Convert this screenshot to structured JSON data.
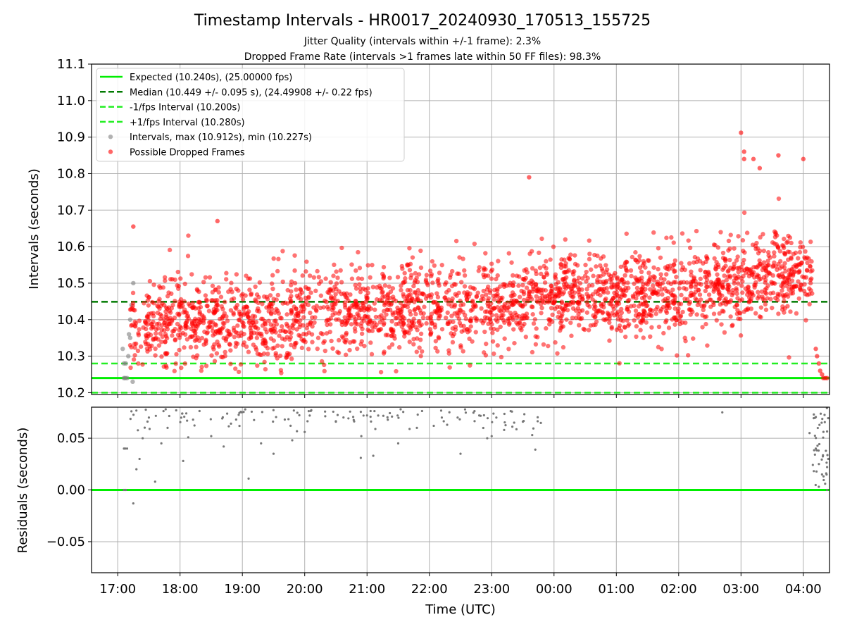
{
  "title": "Timestamp Intervals - HR0017_20240930_170513_155725",
  "subtitle_1": "Jitter Quality (intervals within +/-1 frame): 2.3%",
  "subtitle_2": "Dropped Frame Rate (intervals >1 frames late within 50 FF files): 98.3%",
  "colors": {
    "expected": "#00ee00",
    "median": "#007a00",
    "fps_band": "#22ee22",
    "intervals": "#808080",
    "dropped": "#ff0000",
    "residuals": "#777777"
  },
  "legend": {
    "placement": "upper-left",
    "items": [
      {
        "label": "Expected (10.240s), (25.00000 fps)",
        "style": "solid",
        "color": "#00ee00"
      },
      {
        "label": "Median (10.449 +/- 0.095 s), (24.49908 +/- 0.22 fps)",
        "style": "dashed",
        "color": "#007a00"
      },
      {
        "label": "-1/fps Interval (10.200s)",
        "style": "dashed",
        "color": "#22ee22"
      },
      {
        "label": "+1/fps Interval (10.280s)",
        "style": "dashed",
        "color": "#22ee22"
      },
      {
        "label": "Intervals, max (10.912s), min (10.227s)",
        "style": "dot",
        "color": "#808080"
      },
      {
        "label": "Possible Dropped Frames",
        "style": "dot",
        "color": "#ff0000"
      }
    ]
  },
  "chart_data": [
    {
      "type": "scatter",
      "title": "Timestamp Intervals - HR0017_20240930_170513_155725",
      "xlabel": "",
      "ylabel": "Intervals (seconds)",
      "xlim_hours": [
        16.58,
        28.42
      ],
      "ylim": [
        10.195,
        11.1
      ],
      "yticks": [
        "10.2",
        "10.3",
        "10.4",
        "10.5",
        "10.6",
        "10.7",
        "10.8",
        "10.9",
        "11.0",
        "11.1"
      ],
      "grid": true,
      "reference_lines": [
        {
          "name": "Expected",
          "y": 10.24,
          "style": "solid"
        },
        {
          "name": "Median",
          "y": 10.449,
          "style": "dashed"
        },
        {
          "name": "-1/fps Interval",
          "y": 10.2,
          "style": "dashed"
        },
        {
          "name": "+1/fps Interval",
          "y": 10.28,
          "style": "dashed"
        }
      ],
      "series": [
        {
          "name": "Intervals, max (10.912s), min (10.227s)",
          "points": [
            [
              17.1,
              10.24
            ],
            [
              17.12,
              10.24
            ],
            [
              17.15,
              10.24
            ],
            [
              17.08,
              10.32
            ],
            [
              17.1,
              10.28
            ],
            [
              17.13,
              10.28
            ],
            [
              17.18,
              10.36
            ],
            [
              17.2,
              10.4
            ],
            [
              17.22,
              10.44
            ],
            [
              17.24,
              10.23
            ],
            [
              17.25,
              10.5
            ],
            [
              17.17,
              10.3
            ],
            [
              17.2,
              10.35
            ]
          ]
        },
        {
          "name": "Possible Dropped Frames",
          "trend": [
            [
              17.2,
              10.37
            ],
            [
              18.0,
              10.4
            ],
            [
              19.0,
              10.39
            ],
            [
              20.0,
              10.41
            ],
            [
              21.0,
              10.43
            ],
            [
              22.0,
              10.43
            ],
            [
              23.0,
              10.44
            ],
            [
              24.0,
              10.47
            ],
            [
              25.0,
              10.46
            ],
            [
              26.0,
              10.47
            ],
            [
              27.0,
              10.51
            ],
            [
              28.0,
              10.53
            ]
          ],
          "notable": [
            [
              17.25,
              10.655
            ],
            [
              18.6,
              10.67
            ],
            [
              23.6,
              10.79
            ],
            [
              27.0,
              10.912
            ],
            [
              27.6,
              10.85
            ],
            [
              28.0,
              10.84
            ],
            [
              27.2,
              10.84
            ],
            [
              27.05,
              10.84
            ],
            [
              27.3,
              10.815
            ],
            [
              27.05,
              10.86
            ]
          ],
          "tail": [
            [
              28.2,
              10.32
            ],
            [
              28.22,
              10.3
            ],
            [
              28.25,
              10.28
            ],
            [
              28.27,
              10.26
            ],
            [
              28.3,
              10.25
            ],
            [
              28.32,
              10.24
            ],
            [
              28.35,
              10.24
            ],
            [
              28.38,
              10.24
            ]
          ]
        }
      ]
    },
    {
      "type": "scatter",
      "title": "",
      "xlabel": "Time (UTC)",
      "ylabel": "Residuals (seconds)",
      "xlim_hours": [
        16.58,
        28.42
      ],
      "ylim": [
        -0.08,
        0.08
      ],
      "yticks": [
        "−0.05",
        "0.00",
        "0.05"
      ],
      "xticks": [
        "17:00",
        "18:00",
        "19:00",
        "20:00",
        "21:00",
        "22:00",
        "23:00",
        "00:00",
        "01:00",
        "02:00",
        "03:00",
        "04:00"
      ],
      "grid": true,
      "reference_lines": [
        {
          "name": "Zero",
          "y": 0.0,
          "style": "solid"
        }
      ],
      "series": [
        {
          "name": "Residuals",
          "points": [
            [
              17.1,
              0.04
            ],
            [
              17.12,
              0.04
            ],
            [
              17.15,
              0.04
            ],
            [
              17.1,
              0.0
            ],
            [
              17.13,
              0.0
            ],
            [
              17.22,
              0.076
            ],
            [
              17.25,
              -0.013
            ],
            [
              17.3,
              0.02
            ],
            [
              17.35,
              0.03
            ],
            [
              17.4,
              0.05
            ],
            [
              17.5,
              0.07
            ],
            [
              17.6,
              0.008
            ],
            [
              17.7,
              0.045
            ],
            [
              17.8,
              0.06
            ],
            [
              18.05,
              0.028
            ],
            [
              18.1,
              0.074
            ],
            [
              18.5,
              0.052
            ],
            [
              18.7,
              0.042
            ],
            [
              18.9,
              0.068
            ],
            [
              19.1,
              0.011
            ],
            [
              19.3,
              0.045
            ],
            [
              19.5,
              0.035
            ],
            [
              19.8,
              0.048
            ],
            [
              20.0,
              0.056
            ],
            [
              20.5,
              0.066
            ],
            [
              20.9,
              0.031
            ],
            [
              21.0,
              0.072
            ],
            [
              21.1,
              0.033
            ],
            [
              21.5,
              0.045
            ],
            [
              21.8,
              0.06
            ],
            [
              22.2,
              0.07
            ],
            [
              22.5,
              0.035
            ],
            [
              22.8,
              0.072
            ],
            [
              23.0,
              0.052
            ],
            [
              23.2,
              0.058
            ],
            [
              23.5,
              0.066
            ],
            [
              23.7,
              0.039
            ],
            [
              23.65,
              0.053
            ],
            [
              26.7,
              0.075
            ],
            [
              28.1,
              0.055
            ],
            [
              28.2,
              0.04
            ],
            [
              28.25,
              0.025
            ],
            [
              28.3,
              0.015
            ],
            [
              28.35,
              0.006
            ],
            [
              28.38,
              0.0
            ],
            [
              28.4,
              0.03
            ]
          ]
        }
      ]
    }
  ]
}
